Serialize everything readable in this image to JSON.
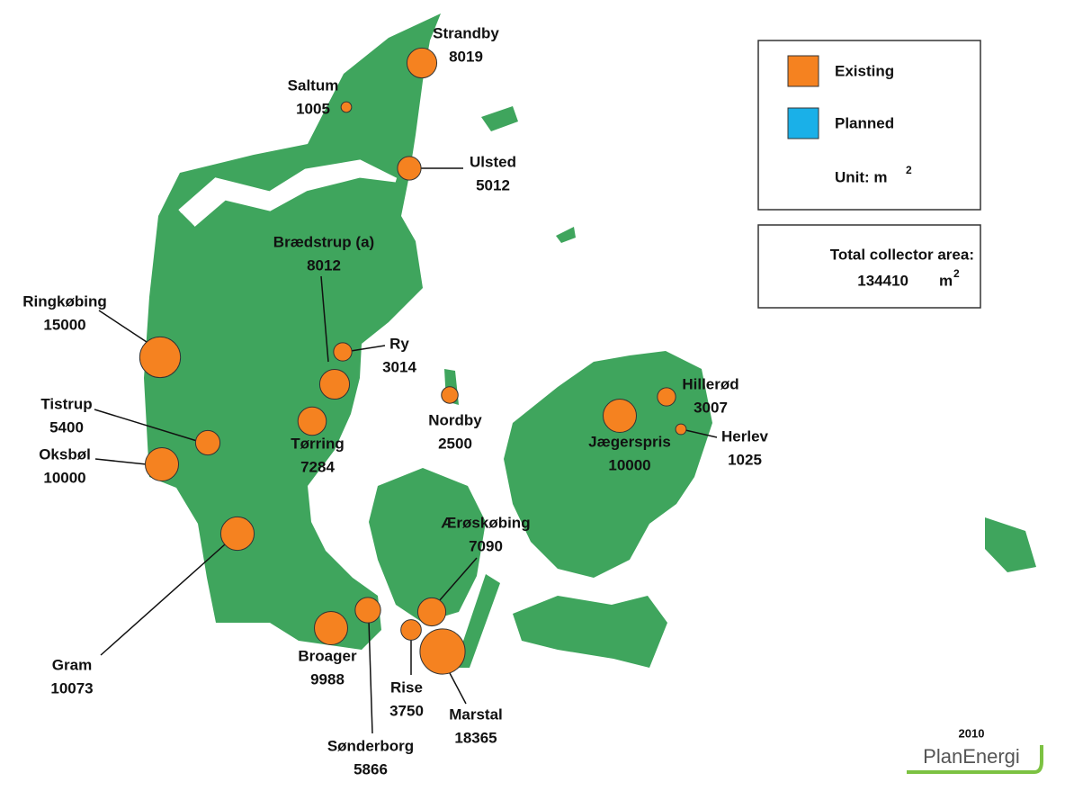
{
  "legend": {
    "items": [
      {
        "label": "Existing",
        "color": "#f58220"
      },
      {
        "label": "Planned",
        "color": "#1ab0e8"
      }
    ],
    "unit_label": "Unit: m",
    "unit_exponent": "2"
  },
  "total": {
    "label": "Total collector area:",
    "value": 134410,
    "unit": "m",
    "unit_exponent": "2"
  },
  "sites": [
    {
      "name": "Strandby",
      "area": 8019
    },
    {
      "name": "Saltum",
      "area": 1005
    },
    {
      "name": "Ulsted",
      "area": 5012
    },
    {
      "name": "Brædstrup (a)",
      "area": 8012
    },
    {
      "name": "Ry",
      "area": 3014
    },
    {
      "name": "Tørring",
      "area": 7284
    },
    {
      "name": "Nordby",
      "area": 2500
    },
    {
      "name": "Ringkøbing",
      "area": 15000
    },
    {
      "name": "Tistrup",
      "area": 5400
    },
    {
      "name": "Oksbøl",
      "area": 10000
    },
    {
      "name": "Gram",
      "area": 10073
    },
    {
      "name": "Broager",
      "area": 9988
    },
    {
      "name": "Sønderborg",
      "area": 5866
    },
    {
      "name": "Ærøskøbing",
      "area": 7090
    },
    {
      "name": "Rise",
      "area": 3750
    },
    {
      "name": "Marstal",
      "area": 18365
    },
    {
      "name": "Jægerspris",
      "area": 10000
    },
    {
      "name": "Hillerød",
      "area": 3007
    },
    {
      "name": "Herlev",
      "area": 1025
    }
  ],
  "year": "2010",
  "logo": "PlanEnergi"
}
